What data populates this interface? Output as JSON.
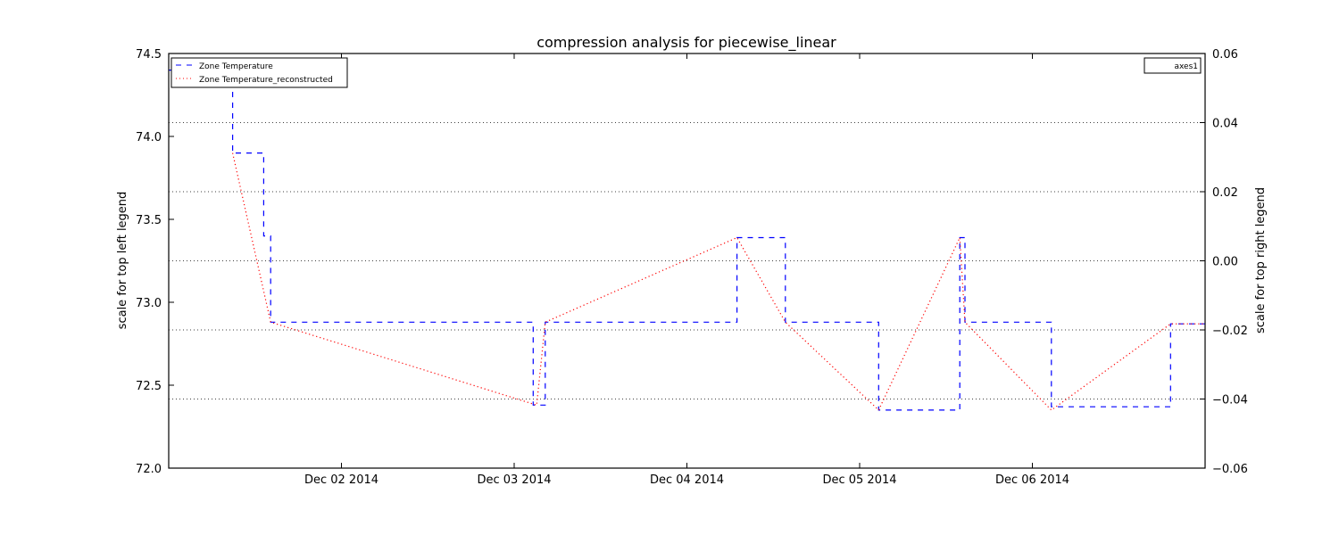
{
  "chart_data": {
    "type": "line",
    "title": "compression analysis for piecewise_linear",
    "ylabel_left": "scale for top left legend",
    "ylabel_right": "scale for top right legend",
    "xlabel": "",
    "x_tick_labels": [
      "Dec 02 2014",
      "Dec 03 2014",
      "Dec 04 2014",
      "Dec 05 2014",
      "Dec 06 2014"
    ],
    "x_tick_days": [
      2,
      3,
      4,
      5,
      6
    ],
    "xlim_days": [
      1.0,
      7.0
    ],
    "ylim_left": [
      72.0,
      74.5
    ],
    "yticks_left": [
      "72.0",
      "72.5",
      "73.0",
      "73.5",
      "74.0",
      "74.5"
    ],
    "ylim_right": [
      -0.06,
      0.06
    ],
    "yticks_right": [
      "−0.06",
      "−0.04",
      "−0.02",
      "0.00",
      "0.02",
      "0.04",
      "0.06"
    ],
    "right_grid_values": [
      -0.04,
      -0.02,
      0.0,
      0.02,
      0.04
    ],
    "grid": "horizontal dotted at right-axis ticks",
    "legend_left_placement": "top-left",
    "legend_right_placement": "top-right",
    "series": [
      {
        "name": "Zone Temperature",
        "style": "dashed",
        "color": "#0000ff",
        "x": [
          1.0,
          1.37,
          1.37,
          1.55,
          1.55,
          1.59,
          1.59,
          3.11,
          3.11,
          3.18,
          3.18,
          4.29,
          4.29,
          4.57,
          4.57,
          5.11,
          5.11,
          5.58,
          5.58,
          5.61,
          5.61,
          6.11,
          6.11,
          6.8,
          6.8,
          7.0
        ],
        "y": [
          74.4,
          74.4,
          73.9,
          73.9,
          73.4,
          73.4,
          72.88,
          72.88,
          72.38,
          72.38,
          72.88,
          72.88,
          73.39,
          73.39,
          72.88,
          72.88,
          72.35,
          72.35,
          73.39,
          73.39,
          72.88,
          72.88,
          72.37,
          72.37,
          72.87,
          72.87
        ]
      },
      {
        "name": "Zone Temperature_reconstructed",
        "style": "dotted",
        "color": "#ff0000",
        "x": [
          1.37,
          1.59,
          3.13,
          3.18,
          4.29,
          4.57,
          5.11,
          5.58,
          5.61,
          6.11,
          6.8,
          7.0
        ],
        "y": [
          73.9,
          72.88,
          72.38,
          72.88,
          73.39,
          72.88,
          72.35,
          73.39,
          72.88,
          72.35,
          72.87,
          72.87
        ]
      }
    ],
    "legend_right_entries": [
      "axes1"
    ]
  }
}
